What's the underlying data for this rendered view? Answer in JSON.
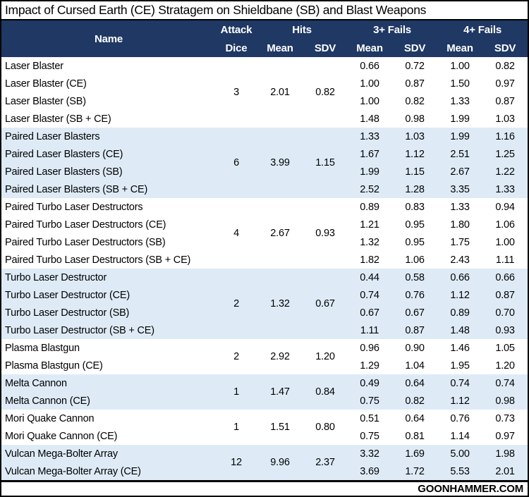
{
  "title": "Impact of Cursed Earth (CE) Stratagem on Shieldbane (SB) and Blast Weapons",
  "footer": {
    "brand": "GOONHAMMER.COM"
  },
  "colors": {
    "header_bg": "#1F3864",
    "header_text": "#FFFFFF",
    "alt_row_bg": "#DEEBF7",
    "border": "#000000"
  },
  "header": {
    "name": "Name",
    "attack_line1": "Attack",
    "attack_line2": "Dice",
    "hits": "Hits",
    "fails3": "3+ Fails",
    "fails4": "4+ Fails",
    "mean": "Mean",
    "sdv": "SDV"
  },
  "chart_data": {
    "type": "table",
    "title": "Impact of Cursed Earth (CE) Stratagem on Shieldbane (SB) and Blast Weapons",
    "columns": [
      "Name",
      "Attack Dice",
      "Hits Mean",
      "Hits SDV",
      "3+ Fails Mean",
      "3+ Fails SDV",
      "4+ Fails Mean",
      "4+ Fails SDV"
    ],
    "groups": [
      {
        "attack_dice": "3",
        "hits_mean": "2.01",
        "hits_sdv": "0.82",
        "rows": [
          {
            "name": "Laser Blaster",
            "f3_mean": "0.66",
            "f3_sdv": "0.72",
            "f4_mean": "1.00",
            "f4_sdv": "0.82"
          },
          {
            "name": "Laser Blaster (CE)",
            "f3_mean": "1.00",
            "f3_sdv": "0.87",
            "f4_mean": "1.50",
            "f4_sdv": "0.97"
          },
          {
            "name": "Laser Blaster (SB)",
            "f3_mean": "1.00",
            "f3_sdv": "0.82",
            "f4_mean": "1.33",
            "f4_sdv": "0.87"
          },
          {
            "name": "Laser Blaster (SB + CE)",
            "f3_mean": "1.48",
            "f3_sdv": "0.98",
            "f4_mean": "1.99",
            "f4_sdv": "1.03"
          }
        ]
      },
      {
        "attack_dice": "6",
        "hits_mean": "3.99",
        "hits_sdv": "1.15",
        "rows": [
          {
            "name": "Paired Laser Blasters",
            "f3_mean": "1.33",
            "f3_sdv": "1.03",
            "f4_mean": "1.99",
            "f4_sdv": "1.16"
          },
          {
            "name": "Paired Laser Blasters (CE)",
            "f3_mean": "1.67",
            "f3_sdv": "1.12",
            "f4_mean": "2.51",
            "f4_sdv": "1.25"
          },
          {
            "name": "Paired Laser Blasters (SB)",
            "f3_mean": "1.99",
            "f3_sdv": "1.15",
            "f4_mean": "2.67",
            "f4_sdv": "1.22"
          },
          {
            "name": "Paired Laser Blasters (SB + CE)",
            "f3_mean": "2.52",
            "f3_sdv": "1.28",
            "f4_mean": "3.35",
            "f4_sdv": "1.33"
          }
        ]
      },
      {
        "attack_dice": "4",
        "hits_mean": "2.67",
        "hits_sdv": "0.93",
        "rows": [
          {
            "name": "Paired Turbo Laser Destructors",
            "f3_mean": "0.89",
            "f3_sdv": "0.83",
            "f4_mean": "1.33",
            "f4_sdv": "0.94"
          },
          {
            "name": "Paired Turbo Laser Destructors (CE)",
            "f3_mean": "1.21",
            "f3_sdv": "0.95",
            "f4_mean": "1.80",
            "f4_sdv": "1.06"
          },
          {
            "name": "Paired Turbo Laser Destructors (SB)",
            "f3_mean": "1.32",
            "f3_sdv": "0.95",
            "f4_mean": "1.75",
            "f4_sdv": "1.00"
          },
          {
            "name": "Paired Turbo Laser Destructors (SB + CE)",
            "f3_mean": "1.82",
            "f3_sdv": "1.06",
            "f4_mean": "2.43",
            "f4_sdv": "1.11"
          }
        ]
      },
      {
        "attack_dice": "2",
        "hits_mean": "1.32",
        "hits_sdv": "0.67",
        "rows": [
          {
            "name": "Turbo Laser Destructor",
            "f3_mean": "0.44",
            "f3_sdv": "0.58",
            "f4_mean": "0.66",
            "f4_sdv": "0.66"
          },
          {
            "name": "Turbo Laser Destructor (CE)",
            "f3_mean": "0.74",
            "f3_sdv": "0.76",
            "f4_mean": "1.12",
            "f4_sdv": "0.87"
          },
          {
            "name": "Turbo Laser Destructor (SB)",
            "f3_mean": "0.67",
            "f3_sdv": "0.67",
            "f4_mean": "0.89",
            "f4_sdv": "0.70"
          },
          {
            "name": "Turbo Laser Destructor (SB + CE)",
            "f3_mean": "1.11",
            "f3_sdv": "0.87",
            "f4_mean": "1.48",
            "f4_sdv": "0.93"
          }
        ]
      },
      {
        "attack_dice": "2",
        "hits_mean": "2.92",
        "hits_sdv": "1.20",
        "rows": [
          {
            "name": "Plasma Blastgun",
            "f3_mean": "0.96",
            "f3_sdv": "0.90",
            "f4_mean": "1.46",
            "f4_sdv": "1.05"
          },
          {
            "name": "Plasma Blastgun (CE)",
            "f3_mean": "1.29",
            "f3_sdv": "1.04",
            "f4_mean": "1.95",
            "f4_sdv": "1.20"
          }
        ]
      },
      {
        "attack_dice": "1",
        "hits_mean": "1.47",
        "hits_sdv": "0.84",
        "rows": [
          {
            "name": "Melta Cannon",
            "f3_mean": "0.49",
            "f3_sdv": "0.64",
            "f4_mean": "0.74",
            "f4_sdv": "0.74"
          },
          {
            "name": "Melta Cannon (CE)",
            "f3_mean": "0.75",
            "f3_sdv": "0.82",
            "f4_mean": "1.12",
            "f4_sdv": "0.98"
          }
        ]
      },
      {
        "attack_dice": "1",
        "hits_mean": "1.51",
        "hits_sdv": "0.80",
        "rows": [
          {
            "name": "Mori Quake Cannon",
            "f3_mean": "0.51",
            "f3_sdv": "0.64",
            "f4_mean": "0.76",
            "f4_sdv": "0.73"
          },
          {
            "name": "Mori Quake Cannon (CE)",
            "f3_mean": "0.75",
            "f3_sdv": "0.81",
            "f4_mean": "1.14",
            "f4_sdv": "0.97"
          }
        ]
      },
      {
        "attack_dice": "12",
        "hits_mean": "9.96",
        "hits_sdv": "2.37",
        "rows": [
          {
            "name": "Vulcan Mega-Bolter Array",
            "f3_mean": "3.32",
            "f3_sdv": "1.69",
            "f4_mean": "5.00",
            "f4_sdv": "1.98"
          },
          {
            "name": "Vulcan Mega-Bolter Array (CE)",
            "f3_mean": "3.69",
            "f3_sdv": "1.72",
            "f4_mean": "5.53",
            "f4_sdv": "2.01"
          }
        ]
      }
    ]
  }
}
